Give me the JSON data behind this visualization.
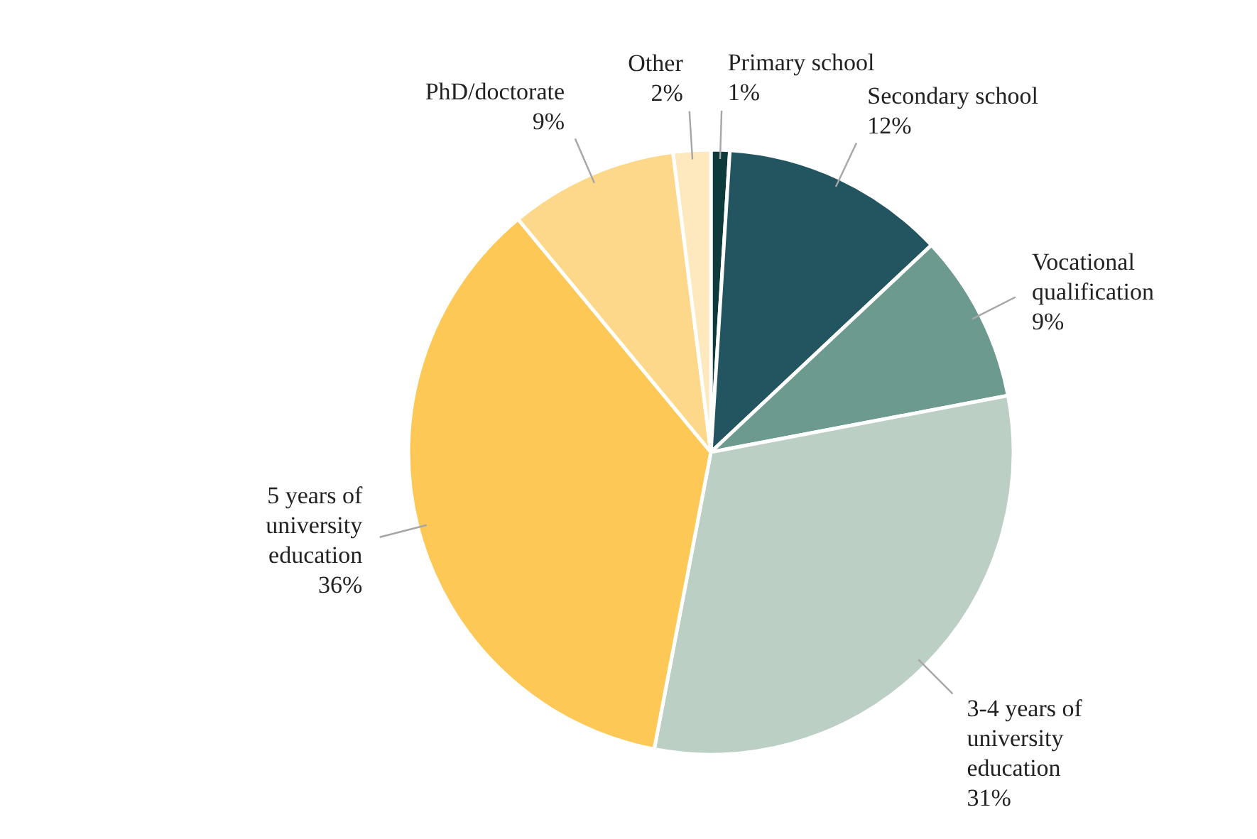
{
  "chart_data": {
    "type": "pie",
    "categories": [
      "Primary school",
      "Secondary school",
      "Vocational qualification",
      "3-4 years of university education",
      "5 years of university education",
      "PhD/doctorate",
      "Other"
    ],
    "values": [
      1,
      12,
      9,
      31,
      36,
      9,
      2
    ],
    "value_labels": [
      "1%",
      "12%",
      "9%",
      "31%",
      "36%",
      "9%",
      "2%"
    ],
    "colors": [
      "#0d3b3b",
      "#22555f",
      "#6d9a8f",
      "#bccfc5",
      "#fec857",
      "#fed88a",
      "#fee8bd"
    ]
  }
}
